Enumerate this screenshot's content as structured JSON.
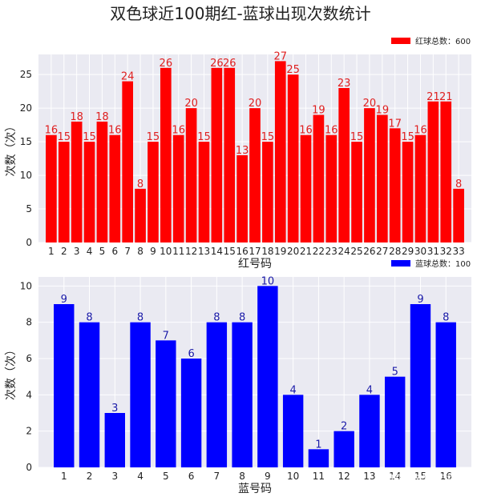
{
  "figure": {
    "title": "双色球近100期红-蓝球出现次数统计",
    "watermark": "知乎 @数字故事"
  },
  "chart_data": [
    {
      "type": "bar",
      "xlabel": "红号码",
      "ylabel": "次数（次）",
      "ylim": [
        0,
        28
      ],
      "yticks": [
        0,
        5,
        10,
        15,
        20,
        25
      ],
      "grid": true,
      "legend": "top-right",
      "color": "#ff0000",
      "label_color": "#e02020",
      "categories": [
        "1",
        "2",
        "3",
        "4",
        "5",
        "6",
        "7",
        "8",
        "9",
        "10",
        "11",
        "12",
        "13",
        "14",
        "15",
        "16",
        "17",
        "18",
        "19",
        "20",
        "21",
        "22",
        "23",
        "24",
        "25",
        "26",
        "27",
        "28",
        "29",
        "30",
        "31",
        "32",
        "33"
      ],
      "series": [
        {
          "name": "红球总数：600",
          "values": [
            16,
            15,
            18,
            15,
            18,
            16,
            24,
            8,
            15,
            26,
            16,
            20,
            15,
            26,
            26,
            13,
            20,
            15,
            27,
            25,
            16,
            19,
            16,
            23,
            15,
            20,
            19,
            17,
            15,
            16,
            21,
            21,
            8
          ]
        }
      ]
    },
    {
      "type": "bar",
      "xlabel": "蓝号码",
      "ylabel": "次数（次）",
      "ylim": [
        0,
        10.5
      ],
      "yticks": [
        0,
        2,
        4,
        6,
        8,
        10
      ],
      "grid": true,
      "legend": "top-right",
      "color": "#0000ff",
      "label_color": "#1a1aa8",
      "categories": [
        "1",
        "2",
        "3",
        "4",
        "5",
        "6",
        "7",
        "8",
        "9",
        "10",
        "11",
        "12",
        "13",
        "14",
        "15",
        "16"
      ],
      "series": [
        {
          "name": "蓝球总数：100",
          "values": [
            9,
            8,
            3,
            8,
            7,
            6,
            8,
            8,
            10,
            4,
            1,
            2,
            4,
            5,
            9,
            8
          ]
        }
      ]
    }
  ]
}
